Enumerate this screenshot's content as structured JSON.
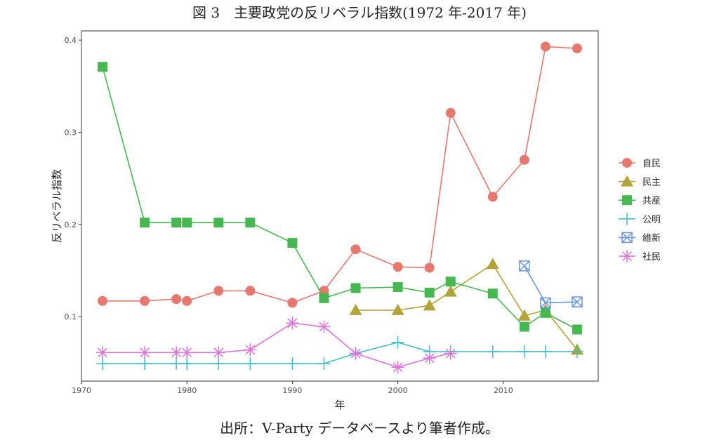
{
  "title": "図 3　主要政党の反リベラル指数(1972 年-2017 年)",
  "source_note": "出所：V-Party データベースより筆者作成。",
  "chart_data": {
    "type": "line",
    "xlabel": "年",
    "ylabel": "反リベラル指数",
    "xlim": [
      1970,
      2019
    ],
    "ylim": [
      0.03,
      0.41
    ],
    "x_ticks": [
      1970,
      1980,
      1990,
      2000,
      2010
    ],
    "y_ticks": [
      0.1,
      0.2,
      0.3,
      0.4
    ],
    "x_tick_labels": [
      "1970",
      "1980",
      "1990",
      "2000",
      "2010"
    ],
    "y_tick_labels": [
      "0.1",
      "0.2",
      "0.3",
      "0.4"
    ],
    "grid": false,
    "legend_position": "right",
    "series": [
      {
        "name": "自民",
        "color": "#E5786F",
        "marker": "circle",
        "x": [
          1972,
          1976,
          1979,
          1980,
          1983,
          1986,
          1990,
          1993,
          1996,
          2000,
          2003,
          2005,
          2009,
          2012,
          2014,
          2017
        ],
        "y": [
          0.117,
          0.117,
          0.119,
          0.117,
          0.128,
          0.128,
          0.115,
          0.128,
          0.173,
          0.154,
          0.153,
          0.321,
          0.23,
          0.27,
          0.393,
          0.391
        ]
      },
      {
        "name": "民主",
        "color": "#B2A33A",
        "marker": "triangle",
        "x": [
          1996,
          2000,
          2003,
          2005,
          2009,
          2012,
          2014,
          2017
        ],
        "y": [
          0.107,
          0.107,
          0.112,
          0.127,
          0.157,
          0.101,
          0.107,
          0.064
        ]
      },
      {
        "name": "共産",
        "color": "#47B851",
        "marker": "square",
        "x": [
          1972,
          1976,
          1979,
          1980,
          1983,
          1986,
          1990,
          1993,
          1996,
          2000,
          2003,
          2005,
          2009,
          2012,
          2014,
          2017
        ],
        "y": [
          0.371,
          0.202,
          0.202,
          0.202,
          0.202,
          0.202,
          0.18,
          0.12,
          0.131,
          0.132,
          0.126,
          0.138,
          0.125,
          0.089,
          0.104,
          0.086
        ]
      },
      {
        "name": "公明",
        "color": "#3DBFC4",
        "marker": "plus",
        "x": [
          1972,
          1976,
          1979,
          1980,
          1983,
          1986,
          1990,
          1993,
          1996,
          2000,
          2003,
          2005,
          2009,
          2012,
          2014,
          2017
        ],
        "y": [
          0.049,
          0.049,
          0.049,
          0.049,
          0.049,
          0.049,
          0.049,
          0.049,
          0.06,
          0.072,
          0.062,
          0.062,
          0.062,
          0.062,
          0.062,
          0.062
        ]
      },
      {
        "name": "維新",
        "color": "#6A95E0",
        "marker": "boxx",
        "x": [
          2012,
          2014,
          2017
        ],
        "y": [
          0.155,
          0.115,
          0.116
        ]
      },
      {
        "name": "社民",
        "color": "#DA75DB",
        "marker": "star",
        "x": [
          1972,
          1976,
          1979,
          1980,
          1983,
          1986,
          1990,
          1993,
          1996,
          2000,
          2003,
          2005
        ],
        "y": [
          0.061,
          0.061,
          0.061,
          0.061,
          0.061,
          0.064,
          0.093,
          0.089,
          0.06,
          0.045,
          0.055,
          0.06
        ]
      }
    ]
  }
}
